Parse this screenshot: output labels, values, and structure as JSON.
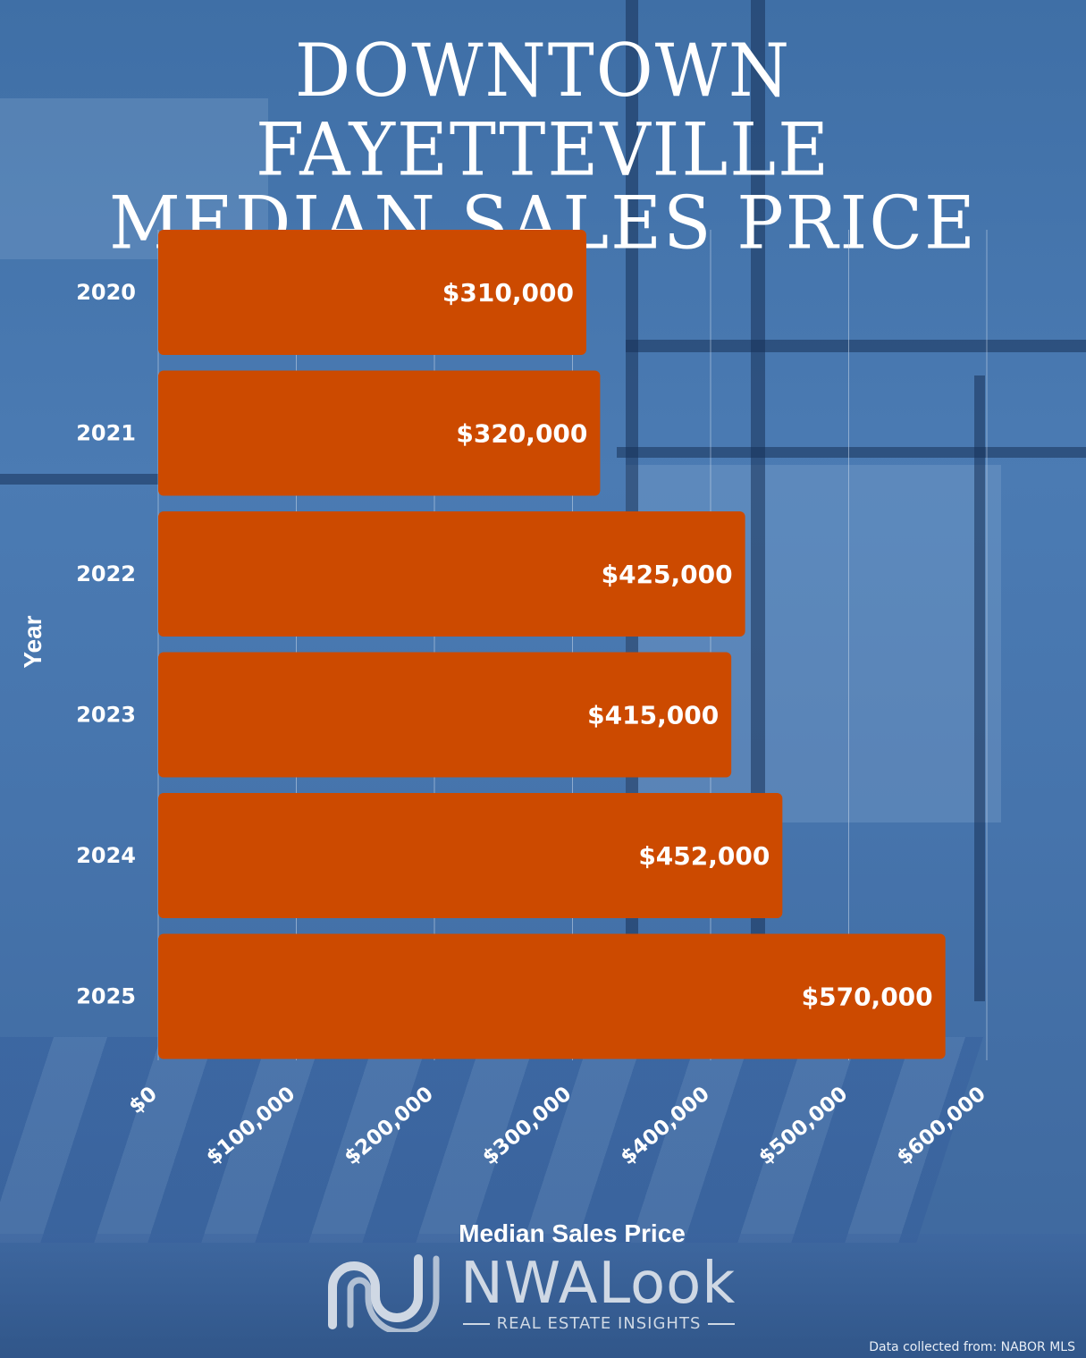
{
  "title_lines": [
    "DOWNTOWN FAYETTEVILLE",
    "MEDIAN SALES PRICE"
  ],
  "colors": {
    "bar": "#cc4a00",
    "text": "#ffffff",
    "grid": "#c9d8ea",
    "logo": "#cfd8e4"
  },
  "chart_data": {
    "type": "bar",
    "orientation": "horizontal",
    "title": "DOWNTOWN FAYETTEVILLE MEDIAN SALES PRICE",
    "categories": [
      "2020",
      "2021",
      "2022",
      "2023",
      "2024",
      "2025"
    ],
    "values": [
      310000,
      320000,
      425000,
      415000,
      452000,
      570000
    ],
    "value_labels": [
      "$310,000",
      "$320,000",
      "$425,000",
      "$415,000",
      "$452,000",
      "$570,000"
    ],
    "xlabel": "Median Sales Price",
    "ylabel": "Year",
    "xlim": [
      0,
      600000
    ],
    "x_ticks": [
      0,
      100000,
      200000,
      300000,
      400000,
      500000,
      600000
    ],
    "x_tick_labels": [
      "$0",
      "$100,000",
      "$200,000",
      "$300,000",
      "$400,000",
      "$500,000",
      "$600,000"
    ],
    "grid": true
  },
  "logo": {
    "text": "NWALook",
    "tagline": "REAL ESTATE INSIGHTS"
  },
  "source_note": "Data collected from: NABOR MLS"
}
